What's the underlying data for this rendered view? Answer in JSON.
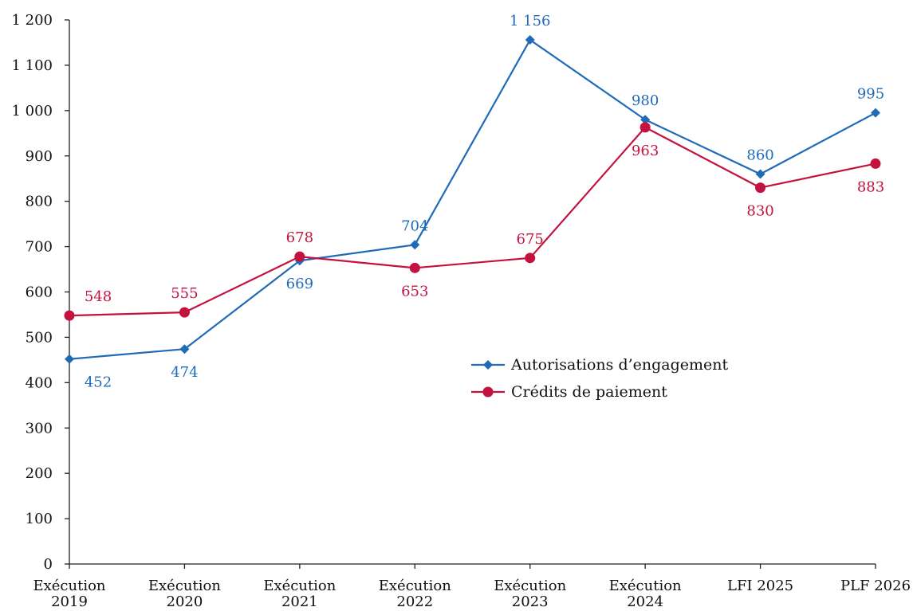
{
  "chart_data": {
    "type": "line",
    "title": "",
    "xlabel": "",
    "ylabel": "",
    "categories": [
      [
        "Exécution",
        "2019"
      ],
      [
        "Exécution",
        "2020"
      ],
      [
        "Exécution",
        "2021"
      ],
      [
        "Exécution",
        "2022"
      ],
      [
        "Exécution",
        "2023"
      ],
      [
        "Exécution",
        "2024"
      ],
      [
        "LFI 2025"
      ],
      [
        "PLF 2026"
      ]
    ],
    "ylim": [
      0,
      1200
    ],
    "yticks": [
      0,
      100,
      200,
      300,
      400,
      500,
      600,
      700,
      800,
      900,
      1000,
      1100,
      1200
    ],
    "ytick_labels": [
      "0",
      "100",
      "200",
      "300",
      "400",
      "500",
      "600",
      "700",
      "800",
      "900",
      "1 000",
      "1 100",
      "1 200"
    ],
    "grid": false,
    "legend_position": "center-right",
    "series": [
      {
        "name": "Autorisations d’engagement",
        "color": "#1f6bb8",
        "marker": "diamond",
        "values": [
          452,
          474,
          669,
          704,
          1156,
          980,
          860,
          995
        ],
        "labels": [
          "452",
          "474",
          "669",
          "704",
          "1 156",
          "980",
          "860",
          "995"
        ],
        "label_side": [
          "below",
          "below",
          "below",
          "above",
          "above",
          "above",
          "above",
          "above"
        ]
      },
      {
        "name": "Crédits de paiement",
        "color": "#c4123f",
        "marker": "circle",
        "values": [
          548,
          555,
          678,
          653,
          675,
          963,
          830,
          883
        ],
        "labels": [
          "548",
          "555",
          "678",
          "653",
          "675",
          "963",
          "830",
          "883"
        ],
        "label_side": [
          "above",
          "above",
          "above",
          "below",
          "above",
          "below",
          "below",
          "below"
        ]
      }
    ]
  }
}
